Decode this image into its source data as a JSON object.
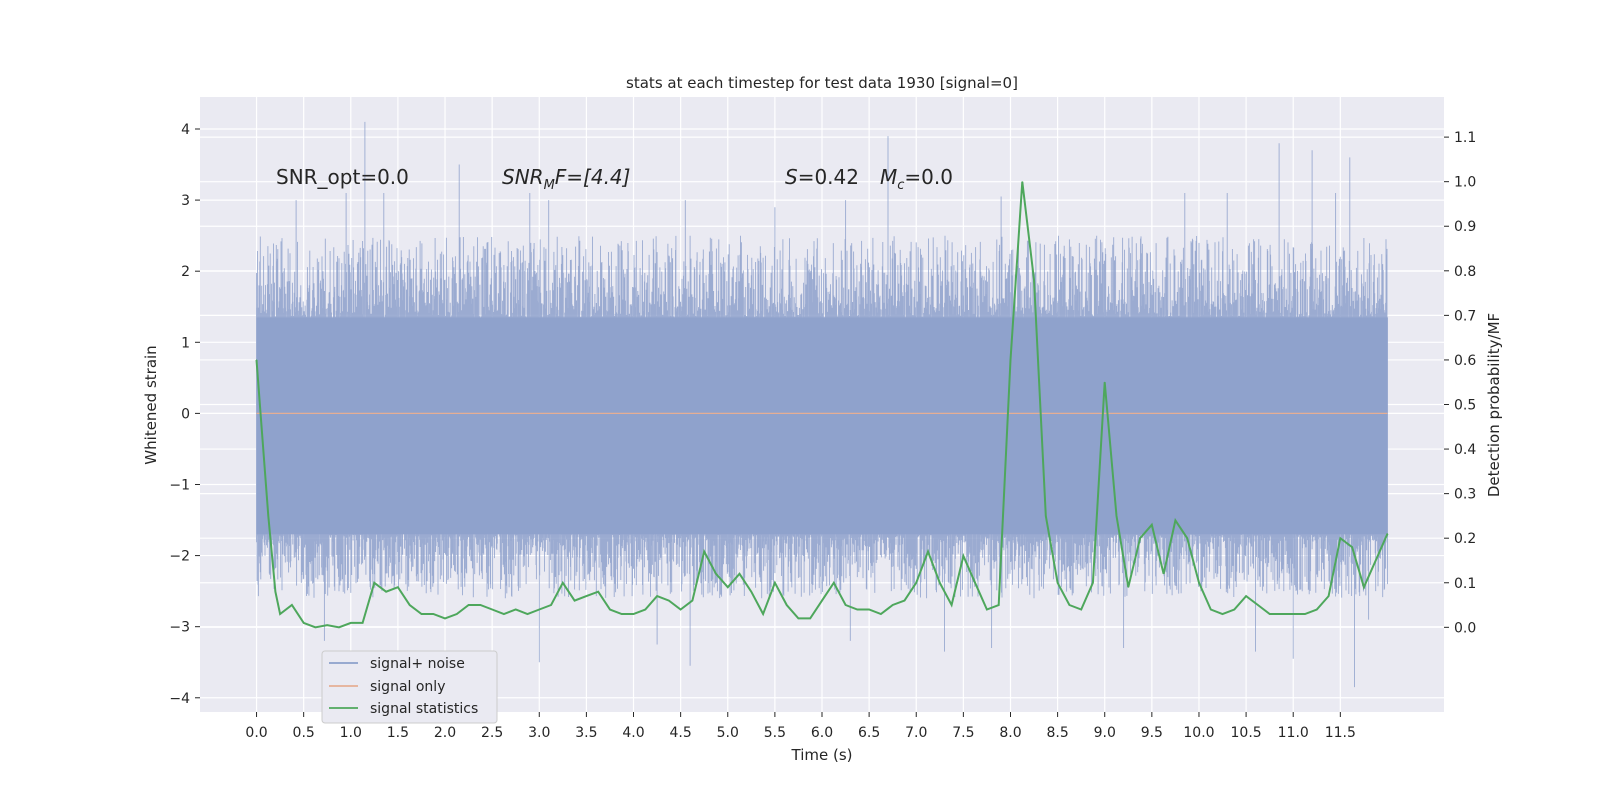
{
  "chart_data": {
    "type": "line",
    "title": "stats at each timestep for test data 1930 [signal=0]",
    "xlabel": "Time (s)",
    "ylabel_left": "Whitened strain",
    "ylabel_right": "Detection probability/MF",
    "xlim": [
      -0.6,
      12.6
    ],
    "ylim_left": [
      -4.2,
      4.45
    ],
    "ylim_right": [
      -0.19,
      1.19
    ],
    "x_ticks": [
      0.0,
      0.5,
      1.0,
      1.5,
      2.0,
      2.5,
      3.0,
      3.5,
      4.0,
      4.5,
      5.0,
      5.5,
      6.0,
      6.5,
      7.0,
      7.5,
      8.0,
      8.5,
      9.0,
      9.5,
      10.0,
      10.5,
      11.0,
      11.5
    ],
    "x_tick_labels": [
      "0.0",
      "0.5",
      "1.0",
      "1.5",
      "2.0",
      "2.5",
      "3.0",
      "3.5",
      "4.0",
      "4.5",
      "5.0",
      "5.5",
      "6.0",
      "6.5",
      "7.0",
      "7.5",
      "8.0",
      "8.5",
      "9.0",
      "9.5",
      "10.0",
      "10.5",
      "11.0",
      "11.5"
    ],
    "y_left_ticks": [
      4,
      3,
      2,
      1,
      0,
      -1,
      -2,
      -3,
      -4
    ],
    "y_left_tick_labels": [
      "4",
      "3",
      "2",
      "1",
      "0",
      "−1",
      "−2",
      "−3",
      "−4"
    ],
    "y_right_ticks": [
      1.1,
      1.0,
      0.9,
      0.8,
      0.7,
      0.6,
      0.5,
      0.4,
      0.3,
      0.2,
      0.1,
      0.0
    ],
    "y_right_tick_labels": [
      "1.1",
      "1.0",
      "0.9",
      "0.8",
      "0.7",
      "0.6",
      "0.5",
      "0.4",
      "0.3",
      "0.2",
      "0.1",
      "0.0"
    ],
    "annotations": {
      "snr_opt": "SNR_opt=0.0",
      "snr_mf_main": "SNR",
      "snr_mf_sub": "M",
      "snr_mf_rest": "F=[4.4]",
      "s_main": "S",
      "s_rest": "=0.42",
      "mc_main": "M",
      "mc_sub": "c",
      "mc_rest": "=0.0"
    },
    "legend": [
      {
        "label": "signal+ noise",
        "color": "#8da0cb"
      },
      {
        "label": "signal only",
        "color": "#e5ae94"
      },
      {
        "label": "signal statistics",
        "color": "#4ea75c"
      }
    ],
    "legend_position": "lower-left",
    "series": [
      {
        "name": "signal+ noise",
        "axis": "left",
        "style": "dense-noise",
        "x_range": [
          0.0,
          12.0
        ],
        "core_range": [
          -1.7,
          1.35
        ],
        "typical_peak_range": [
          -2.6,
          2.5
        ],
        "peaks": [
          {
            "x": 1.15,
            "y": 4.1
          },
          {
            "x": 0.95,
            "y": 3.1
          },
          {
            "x": 0.42,
            "y": 3.0
          },
          {
            "x": 1.35,
            "y": 3.1
          },
          {
            "x": 2.15,
            "y": 3.5
          },
          {
            "x": 2.9,
            "y": 3.1
          },
          {
            "x": 3.1,
            "y": 3.0
          },
          {
            "x": 4.55,
            "y": 3.0
          },
          {
            "x": 5.5,
            "y": 2.9
          },
          {
            "x": 6.7,
            "y": 3.9
          },
          {
            "x": 6.25,
            "y": 3.0
          },
          {
            "x": 7.9,
            "y": 3.05
          },
          {
            "x": 9.85,
            "y": 3.1
          },
          {
            "x": 10.3,
            "y": 3.1
          },
          {
            "x": 10.85,
            "y": 3.8
          },
          {
            "x": 11.2,
            "y": 3.7
          },
          {
            "x": 11.6,
            "y": 3.6
          },
          {
            "x": 11.45,
            "y": 3.1
          },
          {
            "x": 0.72,
            "y": -3.2
          },
          {
            "x": 3.0,
            "y": -3.5
          },
          {
            "x": 4.25,
            "y": -3.25
          },
          {
            "x": 4.6,
            "y": -3.55
          },
          {
            "x": 7.8,
            "y": -3.3
          },
          {
            "x": 7.3,
            "y": -3.35
          },
          {
            "x": 9.2,
            "y": -3.3
          },
          {
            "x": 10.6,
            "y": -3.35
          },
          {
            "x": 11.0,
            "y": -3.45
          },
          {
            "x": 11.65,
            "y": -3.85
          },
          {
            "x": 6.3,
            "y": -3.2
          },
          {
            "x": 11.8,
            "y": -2.9
          }
        ]
      },
      {
        "name": "signal only",
        "axis": "left",
        "x": [
          0.0,
          12.0
        ],
        "y": [
          0.0,
          0.0
        ]
      },
      {
        "name": "signal statistics",
        "axis": "right",
        "x": [
          0.0,
          0.125,
          0.2,
          0.25,
          0.375,
          0.5,
          0.625,
          0.75,
          0.875,
          1.0,
          1.125,
          1.25,
          1.375,
          1.5,
          1.625,
          1.75,
          1.875,
          2.0,
          2.125,
          2.25,
          2.375,
          2.5,
          2.625,
          2.75,
          2.875,
          3.0,
          3.125,
          3.25,
          3.375,
          3.5,
          3.625,
          3.75,
          3.875,
          4.0,
          4.125,
          4.25,
          4.375,
          4.5,
          4.625,
          4.75,
          4.875,
          5.0,
          5.125,
          5.25,
          5.375,
          5.5,
          5.625,
          5.75,
          5.875,
          6.0,
          6.125,
          6.25,
          6.375,
          6.5,
          6.625,
          6.75,
          6.875,
          7.0,
          7.125,
          7.25,
          7.375,
          7.5,
          7.625,
          7.75,
          7.875,
          8.0,
          8.125,
          8.25,
          8.375,
          8.5,
          8.625,
          8.75,
          8.875,
          9.0,
          9.125,
          9.25,
          9.375,
          9.5,
          9.625,
          9.75,
          9.875,
          10.0,
          10.125,
          10.25,
          10.375,
          10.5,
          10.625,
          10.75,
          10.875,
          11.0,
          11.125,
          11.25,
          11.375,
          11.5,
          11.625,
          11.75,
          11.875,
          12.0
        ],
        "y": [
          0.6,
          0.25,
          0.08,
          0.03,
          0.05,
          0.01,
          0.0,
          0.005,
          0.0,
          0.01,
          0.01,
          0.1,
          0.08,
          0.09,
          0.05,
          0.03,
          0.03,
          0.02,
          0.03,
          0.05,
          0.05,
          0.04,
          0.03,
          0.04,
          0.03,
          0.04,
          0.05,
          0.1,
          0.06,
          0.07,
          0.08,
          0.04,
          0.03,
          0.03,
          0.04,
          0.07,
          0.06,
          0.04,
          0.06,
          0.17,
          0.12,
          0.09,
          0.12,
          0.08,
          0.03,
          0.1,
          0.05,
          0.02,
          0.02,
          0.06,
          0.1,
          0.05,
          0.04,
          0.04,
          0.03,
          0.05,
          0.06,
          0.1,
          0.17,
          0.1,
          0.05,
          0.16,
          0.1,
          0.04,
          0.05,
          0.6,
          1.0,
          0.78,
          0.25,
          0.1,
          0.05,
          0.04,
          0.1,
          0.55,
          0.25,
          0.09,
          0.2,
          0.23,
          0.12,
          0.24,
          0.2,
          0.1,
          0.04,
          0.03,
          0.04,
          0.07,
          0.05,
          0.03,
          0.03,
          0.03,
          0.03,
          0.04,
          0.07,
          0.2,
          0.18,
          0.09,
          0.15,
          0.21
        ]
      }
    ]
  }
}
